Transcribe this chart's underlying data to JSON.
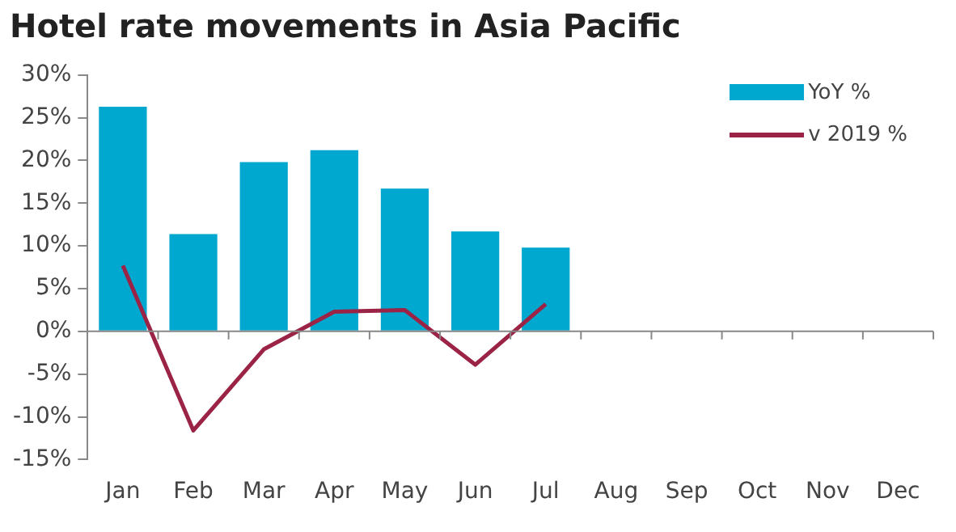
{
  "chart_data": {
    "type": "bar",
    "title": "Hotel rate movements in Asia Pacific",
    "categories": [
      "Jan",
      "Feb",
      "Mar",
      "Apr",
      "May",
      "Jun",
      "Jul",
      "Aug",
      "Sep",
      "Oct",
      "Nov",
      "Dec"
    ],
    "series": [
      {
        "name": "YoY %",
        "color": "#00a7cf",
        "values": [
          26.3,
          11.4,
          19.8,
          21.2,
          16.7,
          11.7,
          9.8,
          null,
          null,
          null,
          null,
          null
        ]
      },
      {
        "name": "v 2019 %",
        "type": "line",
        "color": "#9b2446",
        "values": [
          7.7,
          -11.6,
          -2.1,
          2.3,
          2.5,
          -3.9,
          3.2,
          null,
          null,
          null,
          null,
          null
        ]
      }
    ],
    "ylim": [
      -15,
      30
    ],
    "yticks": [
      {
        "value": -15,
        "label": "-15%"
      },
      {
        "value": -10,
        "label": "-10%"
      },
      {
        "value": -5,
        "label": "-5%"
      },
      {
        "value": 0,
        "label": "0%"
      },
      {
        "value": 5,
        "label": "5%"
      },
      {
        "value": 10,
        "label": "10%"
      },
      {
        "value": 15,
        "label": "15%"
      },
      {
        "value": 20,
        "label": "20%"
      },
      {
        "value": 25,
        "label": "25%"
      },
      {
        "value": 30,
        "label": "30%"
      }
    ],
    "legend": "top right",
    "marker": "none",
    "line_style": "solid"
  }
}
